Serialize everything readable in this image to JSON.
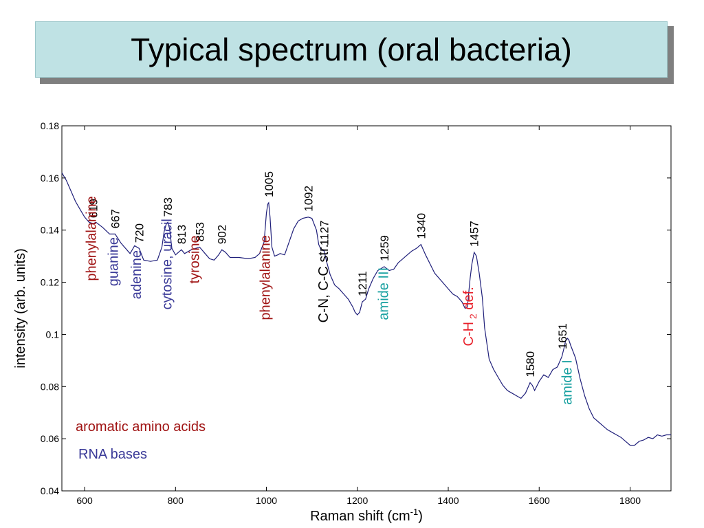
{
  "slide": {
    "title": "Typical spectrum (oral bacteria)"
  },
  "colors": {
    "spectrum": "#1f1f7a",
    "aromatic": "#a01414",
    "rna": "#3a3a98",
    "protein": "#16a0a0",
    "ch2": "#e8202a",
    "neutral": "#000000"
  },
  "chart_data": {
    "type": "line",
    "title": "",
    "xlabel": "Raman shift (cm",
    "xlabel_sup": "-1",
    "xlabel_tail": ")",
    "ylabel": "intensity (arb. units)",
    "xlim": [
      550,
      1890
    ],
    "ylim": [
      0.04,
      0.18
    ],
    "xticks": [
      600,
      800,
      1000,
      1200,
      1400,
      1600,
      1800
    ],
    "yticks": [
      0.04,
      0.06,
      0.08,
      0.1,
      0.12,
      0.14,
      0.16,
      0.18
    ],
    "ytick_labels": [
      "0.04",
      "0.06",
      "0.08",
      "0.1",
      "0.12",
      "0.14",
      "0.16",
      "0.18"
    ],
    "grid": false,
    "series": [
      {
        "x": [
          550,
          560,
          570,
          580,
          590,
          600,
          610,
          619,
          625,
          640,
          655,
          667,
          680,
          700,
          710,
          720,
          730,
          745,
          760,
          770,
          775,
          780,
          783,
          787,
          792,
          800,
          813,
          820,
          835,
          853,
          865,
          875,
          885,
          895,
          902,
          910,
          920,
          940,
          960,
          975,
          985,
          995,
          1000,
          1003,
          1005,
          1008,
          1012,
          1018,
          1025,
          1030,
          1040,
          1050,
          1060,
          1070,
          1080,
          1092,
          1100,
          1110,
          1115,
          1120,
          1127,
          1133,
          1140,
          1150,
          1160,
          1170,
          1180,
          1190,
          1195,
          1200,
          1205,
          1211,
          1218,
          1225,
          1235,
          1245,
          1259,
          1270,
          1280,
          1290,
          1300,
          1310,
          1320,
          1330,
          1340,
          1350,
          1360,
          1370,
          1380,
          1390,
          1400,
          1410,
          1420,
          1430,
          1437,
          1442,
          1448,
          1452,
          1457,
          1462,
          1468,
          1475,
          1480,
          1485,
          1490,
          1500,
          1510,
          1520,
          1530,
          1540,
          1550,
          1560,
          1565,
          1570,
          1575,
          1580,
          1585,
          1590,
          1600,
          1610,
          1620,
          1630,
          1640,
          1650,
          1655,
          1658,
          1662,
          1665,
          1670,
          1680,
          1690,
          1700,
          1710,
          1720,
          1730,
          1740,
          1750,
          1760,
          1770,
          1780,
          1790,
          1800,
          1810,
          1820,
          1830,
          1840,
          1850,
          1860,
          1870,
          1880,
          1890
        ],
        "y": [
          0.162,
          0.159,
          0.155,
          0.151,
          0.148,
          0.145,
          0.143,
          0.1425,
          0.143,
          0.141,
          0.1385,
          0.1385,
          0.135,
          0.131,
          0.134,
          0.133,
          0.1285,
          0.128,
          0.1285,
          0.1335,
          0.1395,
          0.1425,
          0.143,
          0.1405,
          0.133,
          0.1305,
          0.1325,
          0.131,
          0.1325,
          0.1335,
          0.131,
          0.129,
          0.1285,
          0.1305,
          0.1325,
          0.1315,
          0.1295,
          0.1295,
          0.129,
          0.1295,
          0.131,
          0.1355,
          0.1465,
          0.15,
          0.1505,
          0.145,
          0.1335,
          0.13,
          0.1305,
          0.131,
          0.1305,
          0.1355,
          0.1405,
          0.1435,
          0.1445,
          0.145,
          0.1445,
          0.14,
          0.1345,
          0.1325,
          0.132,
          0.1275,
          0.123,
          0.119,
          0.1175,
          0.1155,
          0.1135,
          0.1105,
          0.1085,
          0.1075,
          0.1085,
          0.1125,
          0.1135,
          0.1175,
          0.1215,
          0.1245,
          0.126,
          0.1245,
          0.125,
          0.1275,
          0.129,
          0.1305,
          0.132,
          0.133,
          0.1345,
          0.1305,
          0.127,
          0.1235,
          0.1215,
          0.1195,
          0.1175,
          0.1155,
          0.1145,
          0.1125,
          0.11,
          0.1105,
          0.1215,
          0.127,
          0.1315,
          0.13,
          0.1235,
          0.114,
          0.1025,
          0.0965,
          0.0905,
          0.0865,
          0.0835,
          0.0805,
          0.0785,
          0.0775,
          0.0765,
          0.0755,
          0.0765,
          0.0775,
          0.0795,
          0.0815,
          0.0805,
          0.0785,
          0.082,
          0.0845,
          0.0835,
          0.0865,
          0.0875,
          0.0915,
          0.095,
          0.0975,
          0.0985,
          0.098,
          0.0955,
          0.091,
          0.083,
          0.0765,
          0.0715,
          0.068,
          0.0665,
          0.065,
          0.0635,
          0.0625,
          0.0615,
          0.0605,
          0.059,
          0.0575,
          0.0575,
          0.059,
          0.0595,
          0.0605,
          0.06,
          0.0615,
          0.061,
          0.0615,
          0.0615
        ]
      }
    ],
    "peak_labels": [
      {
        "label": "619",
        "x": 619
      },
      {
        "label": "667",
        "x": 667
      },
      {
        "label": "720",
        "x": 720
      },
      {
        "label": "783",
        "x": 783
      },
      {
        "label": "813",
        "x": 813
      },
      {
        "label": "853",
        "x": 853
      },
      {
        "label": "902",
        "x": 902
      },
      {
        "label": "1005",
        "x": 1005
      },
      {
        "label": "1092",
        "x": 1092
      },
      {
        "label": "1127",
        "x": 1127
      },
      {
        "label": "1211",
        "x": 1211
      },
      {
        "label": "1259",
        "x": 1259
      },
      {
        "label": "1340",
        "x": 1340
      },
      {
        "label": "1457",
        "x": 1457
      },
      {
        "label": "1580",
        "x": 1580
      },
      {
        "label": "1651",
        "x": 1651
      }
    ],
    "band_labels": [
      {
        "text": "phenylalanine",
        "group": "aromatic",
        "x": 614,
        "y": 0.1205
      },
      {
        "text": "guanine",
        "group": "rna",
        "x": 663,
        "y": 0.1185
      },
      {
        "text": "adenine",
        "group": "rna",
        "x": 713,
        "y": 0.1135
      },
      {
        "text": "cytosine, uracil",
        "group": "rna",
        "x": 781,
        "y": 0.1095
      },
      {
        "text": "tyrosine",
        "group": "aromatic",
        "x": 841,
        "y": 0.1195
      },
      {
        "text": "phenylalanine",
        "group": "aromatic",
        "x": 997,
        "y": 0.1055
      },
      {
        "text": "C-N, C-C str.",
        "group": "neutral",
        "x": 1125,
        "y": 0.1045
      },
      {
        "text": "amide III",
        "group": "protein",
        "x": 1257,
        "y": 0.1055
      },
      {
        "text": "amide I",
        "group": "protein",
        "x": 1661,
        "y": 0.073
      }
    ],
    "ch2_label": {
      "main": "C-H",
      "sub": "2",
      "tail": " def.",
      "x": 1444,
      "y": 0.0955
    },
    "legend": [
      {
        "text": "aromatic amino acids",
        "group": "aromatic"
      },
      {
        "text": "RNA bases",
        "group": "rna"
      }
    ]
  }
}
